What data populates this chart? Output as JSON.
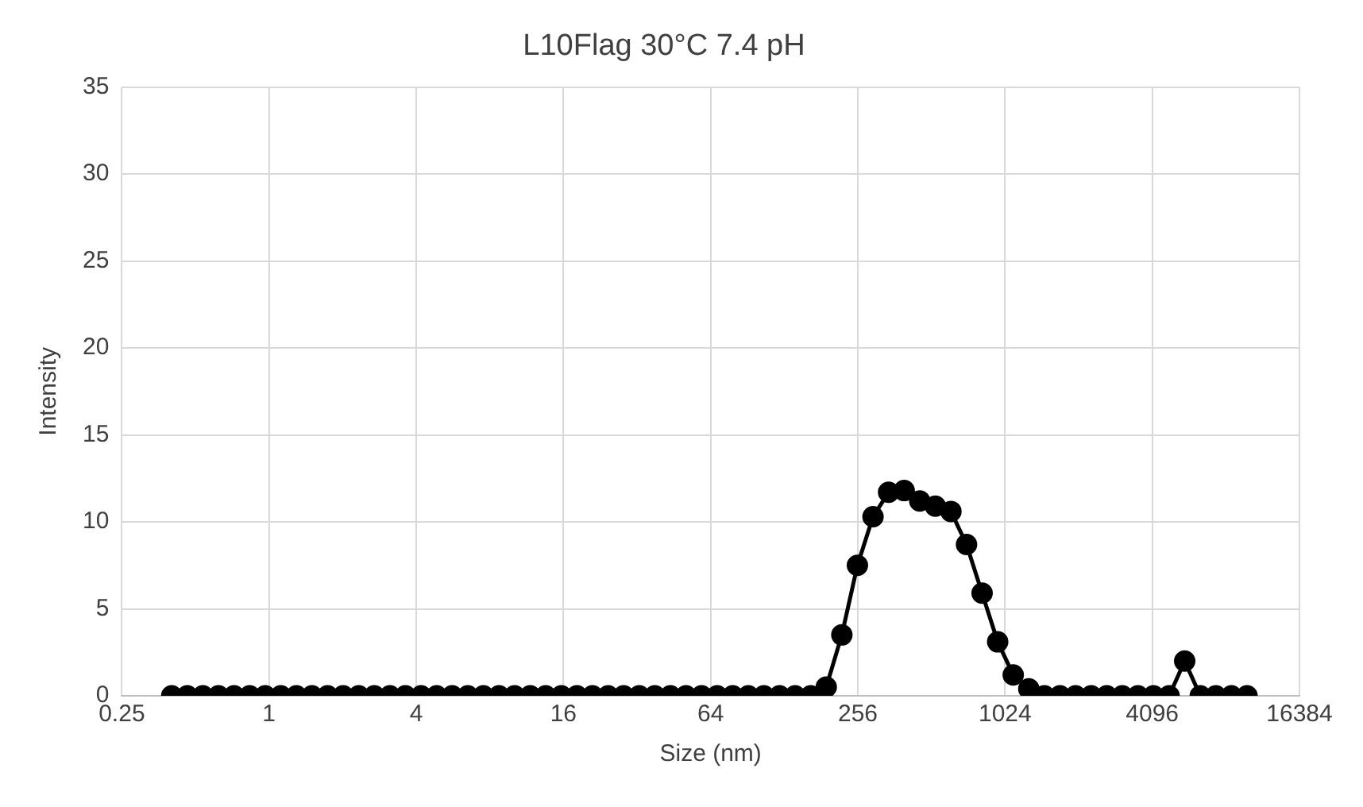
{
  "chart_data": {
    "type": "line",
    "title": "L10Flag 30°C 7.4 pH",
    "xlabel": "Size (nm)",
    "ylabel": "Intensity",
    "x": [
      0.4,
      0.4632,
      0.5365,
      0.6213,
      0.7195,
      0.8332,
      0.9649,
      1.117,
      1.294,
      1.499,
      1.736,
      2.01,
      2.328,
      2.696,
      3.122,
      3.615,
      4.187,
      4.849,
      5.615,
      6.503,
      7.531,
      8.721,
      10.1,
      11.7,
      13.54,
      15.69,
      18.17,
      21.04,
      24.36,
      28.21,
      32.67,
      37.84,
      43.82,
      50.75,
      58.77,
      68.06,
      78.82,
      91.28,
      105.7,
      122.4,
      141.8,
      164.2,
      190.1,
      220.2,
      255,
      295.3,
      342,
      396.1,
      458.7,
      531.2,
      615.1,
      712.4,
      825,
      955.4,
      1106,
      1281,
      1484,
      1718,
      1990,
      2305,
      2669,
      3091,
      3580,
      4145,
      4801,
      5560,
      6439,
      7456,
      8635,
      10000
    ],
    "series": [
      {
        "color": "#000000",
        "values": [
          0,
          0,
          0,
          0,
          0,
          0,
          0,
          0,
          0,
          0,
          0,
          0,
          0,
          0,
          0,
          0,
          0,
          0,
          0,
          0,
          0,
          0,
          0,
          0,
          0,
          0,
          0,
          0,
          0,
          0,
          0,
          0,
          0,
          0,
          0,
          0,
          0,
          0,
          0,
          0,
          0,
          0,
          0.5,
          3.5,
          7.5,
          10.3,
          11.7,
          11.8,
          11.2,
          10.9,
          10.6,
          8.7,
          5.9,
          3.1,
          1.2,
          0.4,
          0,
          0,
          0,
          0,
          0,
          0,
          0,
          0,
          0,
          2,
          0,
          0,
          0,
          0
        ]
      }
    ],
    "log": "x",
    "xlim": [
      0.25,
      16384
    ],
    "xticks": [
      0.25,
      1,
      4,
      16,
      64,
      256,
      1024,
      4096,
      16384
    ],
    "ylim": [
      0,
      35
    ],
    "yticks": [
      0,
      5,
      10,
      15,
      20,
      25,
      30,
      35
    ],
    "grid": true,
    "legend": false,
    "marker": "circle",
    "line_style": "solid"
  }
}
